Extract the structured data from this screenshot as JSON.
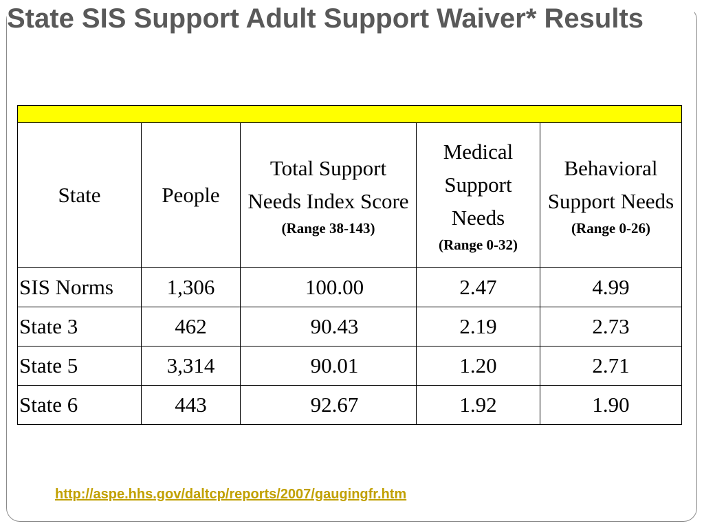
{
  "slide": {
    "title": "State SIS Support Adult Support Waiver* Results",
    "source_link": "http://aspe.hhs.gov/daltcp/reports/2007/gaugingfr.htm"
  },
  "table": {
    "highlight_color": "#ffff00",
    "headers": {
      "state": "State",
      "people": "People",
      "total": {
        "label": "Total Support Needs Index Score",
        "range": "(Range 38-143)"
      },
      "medical": {
        "label": "Medical Support Needs",
        "range": "(Range 0-32)"
      },
      "behavioral": {
        "label": "Behavioral Support Needs",
        "range": "(Range 0-26)"
      }
    },
    "rows": [
      {
        "state": "SIS Norms",
        "people": "1,306",
        "total": "100.00",
        "medical": "2.47",
        "behavioral": "4.99"
      },
      {
        "state": "State 3",
        "people": "462",
        "total": "90.43",
        "medical": "2.19",
        "behavioral": "2.73"
      },
      {
        "state": "State 5",
        "people": "3,314",
        "total": "90.01",
        "medical": "1.20",
        "behavioral": "2.71"
      },
      {
        "state": "State 6",
        "people": "443",
        "total": "92.67",
        "medical": "1.92",
        "behavioral": "1.90"
      }
    ]
  }
}
